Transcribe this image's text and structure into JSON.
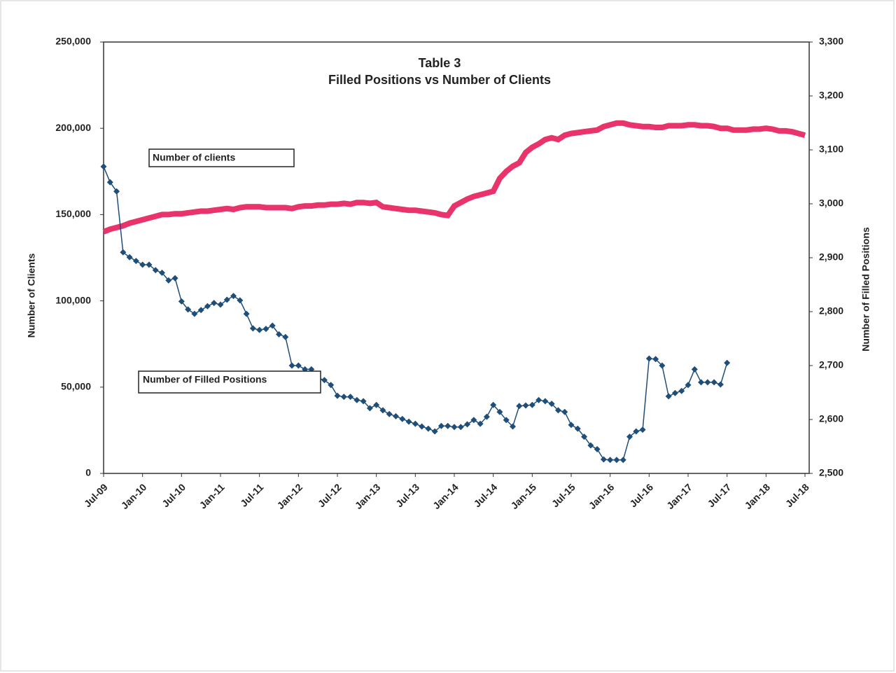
{
  "chart_data": {
    "type": "line",
    "title": "Table 3",
    "subtitle": "Filled Positions vs Number of Clients",
    "y_label": "Number of Clients",
    "y2_label": "Number of Filled Positions",
    "categories": [
      "Jul-09",
      null,
      null,
      null,
      null,
      null,
      "Jan-10",
      null,
      null,
      null,
      null,
      null,
      "Jul-10",
      null,
      null,
      null,
      null,
      null,
      "Jan-11",
      null,
      null,
      null,
      null,
      null,
      "Jul-11",
      null,
      null,
      null,
      null,
      null,
      "Jan-12",
      null,
      null,
      null,
      null,
      null,
      "Jul-12",
      null,
      null,
      null,
      null,
      null,
      "Jan-13",
      null,
      null,
      null,
      null,
      null,
      "Jul-13",
      null,
      null,
      null,
      null,
      null,
      "Jan-14",
      null,
      null,
      null,
      null,
      null,
      "Jul-14",
      null,
      null,
      null,
      null,
      null,
      "Jan-15",
      null,
      null,
      null,
      null,
      null,
      "Jul-15",
      null,
      null,
      null,
      null,
      null,
      "Jan-16",
      null,
      null,
      null,
      null,
      null,
      "Jul-16",
      null,
      null,
      null,
      null,
      null,
      "Jan-17",
      null,
      null,
      null,
      null,
      null,
      "Jul-17",
      null,
      null,
      null,
      null,
      null,
      "Jan-18",
      null,
      null,
      null,
      null,
      null,
      "Jul-18"
    ],
    "series": [
      {
        "name": "Number of clients",
        "color": "#e8336b",
        "axis": "y",
        "values": [
          140000,
          141500,
          142500,
          143500,
          145000,
          146000,
          147000,
          148000,
          149000,
          150000,
          150000,
          150500,
          150500,
          151000,
          151500,
          152000,
          152000,
          152500,
          153000,
          153500,
          153000,
          154000,
          154500,
          154500,
          154500,
          154000,
          154000,
          154000,
          154000,
          153500,
          154500,
          155000,
          155000,
          155500,
          155500,
          156000,
          156000,
          156500,
          156000,
          157000,
          157000,
          156500,
          157000,
          154500,
          154000,
          153500,
          153000,
          152500,
          152500,
          152000,
          151500,
          151000,
          150000,
          149500,
          155000,
          157000,
          159000,
          160500,
          161500,
          162500,
          163500,
          171000,
          175000,
          178000,
          180000,
          186000,
          189000,
          191000,
          193500,
          194500,
          193500,
          196000,
          197000,
          197500,
          198000,
          198500,
          199000,
          201000,
          202000,
          203000,
          203000,
          202000,
          201500,
          201000,
          201000,
          200500,
          200500,
          201500,
          201500,
          201500,
          202000,
          202000,
          201500,
          201500,
          201000,
          200000,
          200000,
          199000,
          199000,
          199000,
          199500,
          199500,
          200000,
          199500,
          198500,
          198500,
          198000,
          197000,
          196000
        ]
      },
      {
        "name": "Number of Filled Positions",
        "color": "#1f4e79",
        "axis": "y2",
        "values": [
          3069,
          3040,
          3023,
          2910,
          2901,
          2894,
          2887,
          2887,
          2877,
          2872,
          2858,
          2862,
          2819,
          2804,
          2796,
          2803,
          2810,
          2816,
          2813,
          2822,
          2829,
          2821,
          2796,
          2769,
          2766,
          2768,
          2774,
          2758,
          2753,
          2700,
          2700,
          2693,
          2693,
          2677,
          2673,
          2664,
          2644,
          2642,
          2642,
          2636,
          2634,
          2621,
          2627,
          2617,
          2610,
          2606,
          2601,
          2596,
          2592,
          2587,
          2583,
          2578,
          2588,
          2588,
          2586,
          2586,
          2591,
          2599,
          2592,
          2605,
          2627,
          2614,
          2599,
          2587,
          2625,
          2626,
          2627,
          2636,
          2634,
          2629,
          2617,
          2614,
          2590,
          2583,
          2568,
          2552,
          2545,
          2526,
          2525,
          2525,
          2525,
          2568,
          2578,
          2581,
          2713,
          2712,
          2700,
          2643,
          2649,
          2653,
          2664,
          2693,
          2669,
          2669,
          2669,
          2665,
          2705,
          null,
          null,
          null,
          null,
          null,
          null,
          null,
          null,
          null,
          null,
          null,
          null
        ]
      }
    ],
    "ylim": [
      0,
      250000
    ],
    "yticks": [
      0,
      {
        "value": 50000,
        "label": "50,000"
      },
      {
        "value": 100000,
        "label": "100,000"
      },
      {
        "value": 150000,
        "label": "150,000"
      },
      {
        "value": 200000,
        "label": "200,000"
      },
      {
        "value": 250000,
        "label": "250,000"
      }
    ],
    "y2lim": [
      2500,
      3300
    ],
    "y2ticks": [
      {
        "value": 2500,
        "label": "2,500"
      },
      {
        "value": 2600,
        "label": "2,600"
      },
      {
        "value": 2700,
        "label": "2,700"
      },
      {
        "value": 2800,
        "label": "2,800"
      },
      {
        "value": 2900,
        "label": "2,900"
      },
      {
        "value": 3000,
        "label": "3,000"
      },
      {
        "value": 3100,
        "label": "3,100"
      },
      {
        "value": 3200,
        "label": "3,200"
      },
      {
        "value": 3300,
        "label": "3,300"
      }
    ],
    "grid": false
  }
}
